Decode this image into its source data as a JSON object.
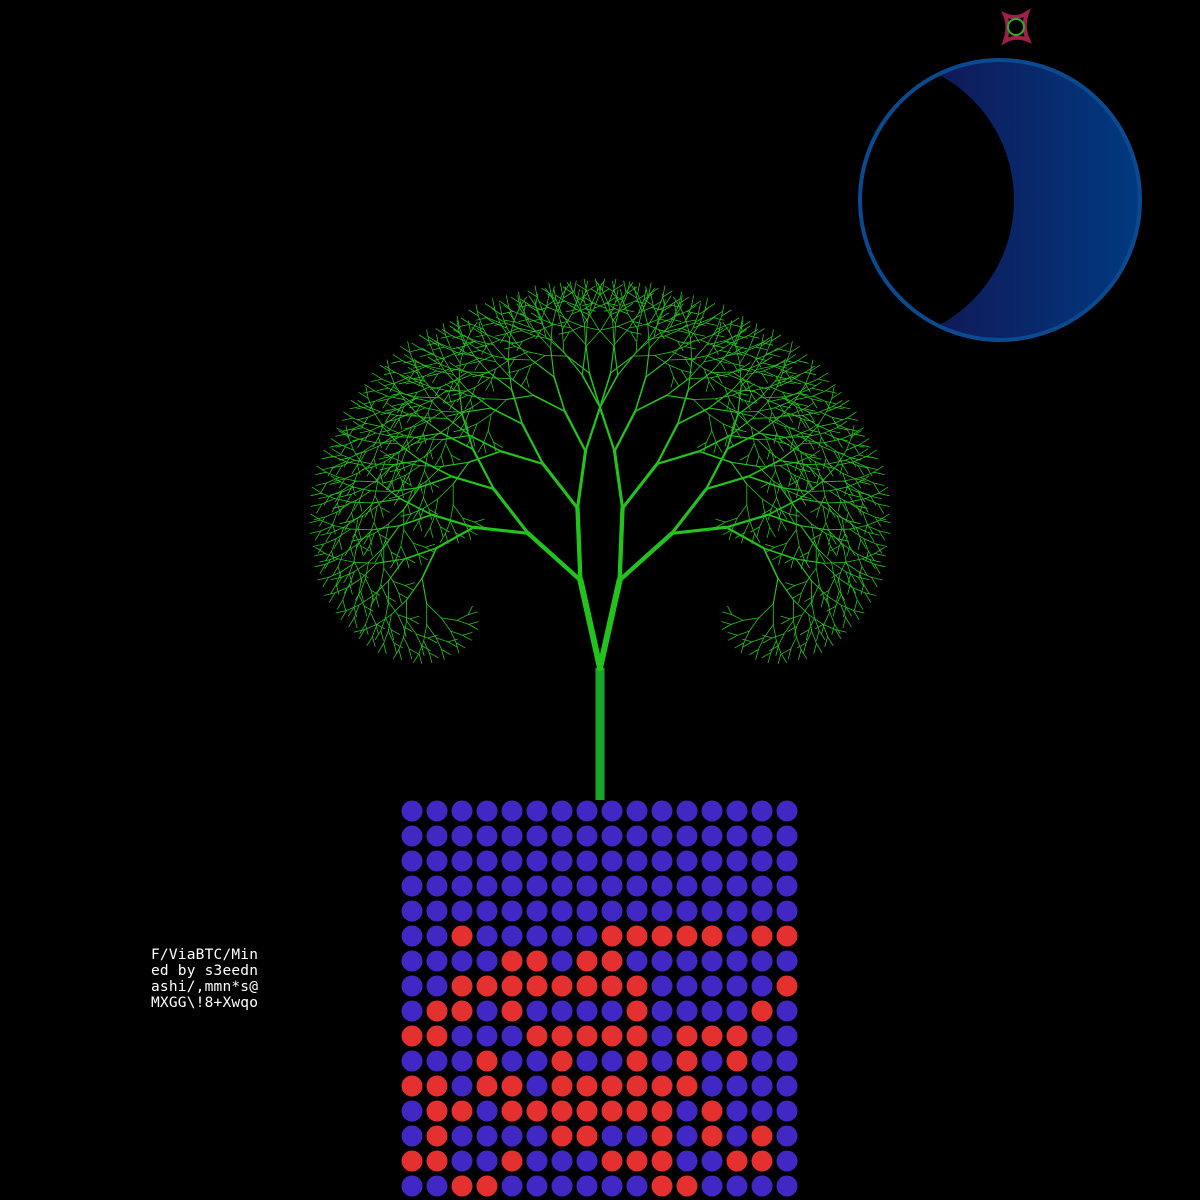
{
  "inscription": {
    "lines": [
      "F/ViaBTC/Min",
      "ed by s3eedn",
      "ashi/,mmn*s@",
      "MXGG\\!8+Xwqo"
    ]
  },
  "colors": {
    "background": "#000000",
    "tree": "#22c41c",
    "trunk": "#1aa82a",
    "moon_edge": "#0a4a90",
    "moon_dark": "#101a5a",
    "moon_light": "#003a80",
    "dot_blue": "#4128c4",
    "dot_red": "#e53030",
    "emblem_ring": "#a0204a",
    "emblem_inner": "#2ab02a"
  },
  "icons": {
    "emblem": "square-ring-icon",
    "moon": "crescent-moon"
  },
  "grid": {
    "columns": 16,
    "rows": [
      "BBBBBBBBBBBBBBBB",
      "BBBBBBBBBBBBBBBB",
      "BBBBBBBBBBBBBBBB",
      "BBBBBBBBBBBBBBBB",
      "BBBBBBBBBBBBBBBB",
      "BBRBBBBBRRRRRBRR",
      "BBBBRRBRRBBBBBBB",
      "BBRRRRRRRRBBBBBR",
      "BRRBRBBBBRBBBBRB",
      "RRBBBRRRRRBRRRBB",
      "BBBRBBRBBRBRBRBB",
      "RRBRRBRRRRRRBBBB",
      "BRRBRRRRRRRBRBBB",
      "BRBBBBRRBBRBRBRB",
      "RRBBRBBBRRRBBRRB",
      "BBRRBBBBBBRRBBBB"
    ]
  }
}
